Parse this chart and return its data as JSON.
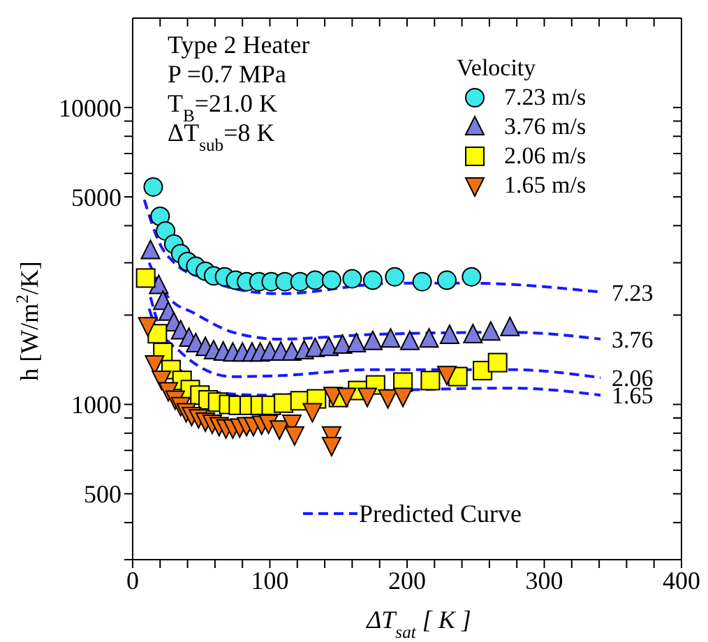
{
  "chart_data": {
    "type": "scatter",
    "xlabel": "ΔT$_{sat}$ [ K ]",
    "ylabel": "h   [W/m$^{2}$/K]",
    "legend_title": "Velocity",
    "legend": "top right",
    "log": "y",
    "xlim": [
      0,
      400
    ],
    "xticks": [
      0,
      {
        "value": 20,
        "label": null
      },
      {
        "value": 40,
        "label": null
      },
      {
        "value": 60,
        "label": null
      },
      {
        "value": 80,
        "label": null
      },
      100,
      {
        "value": 120,
        "label": null
      },
      {
        "value": 140,
        "label": null
      },
      {
        "value": 160,
        "label": null
      },
      {
        "value": 180,
        "label": null
      },
      200,
      {
        "value": 220,
        "label": null
      },
      {
        "value": 240,
        "label": null
      },
      {
        "value": 260,
        "label": null
      },
      {
        "value": 280,
        "label": null
      },
      300,
      {
        "value": 320,
        "label": null
      },
      {
        "value": 340,
        "label": null
      },
      {
        "value": 360,
        "label": null
      },
      {
        "value": 380,
        "label": null
      },
      400
    ],
    "ylim": [
      300,
      20000
    ],
    "yticks": [
      {
        "value": 300,
        "label": null
      },
      {
        "value": 400,
        "label": null
      },
      500,
      {
        "value": 600,
        "label": null
      },
      {
        "value": 700,
        "label": null
      },
      {
        "value": 800,
        "label": null
      },
      {
        "value": 900,
        "label": null
      },
      1000,
      {
        "value": 2000,
        "label": null
      },
      {
        "value": 3000,
        "label": null
      },
      {
        "value": 4000,
        "label": null
      },
      5000,
      {
        "value": 6000,
        "label": null
      },
      {
        "value": 7000,
        "label": null
      },
      {
        "value": 8000,
        "label": null
      },
      {
        "value": 9000,
        "label": null
      },
      10000
    ],
    "annotations": [
      "Type 2 Heater",
      "P =0.7  MPa",
      "T$_{B}$=21.0  K",
      "ΔT$_{sub}$=8  K",
      "Predicted Curve",
      "7.23",
      "3.76",
      "2.06",
      "1.65"
    ],
    "series": [
      {
        "name": "7.23 m/s",
        "marker": "circle",
        "color": "#40e8e8",
        "x": [
          15,
          20,
          24,
          30,
          35,
          40,
          46,
          53,
          59,
          67,
          75,
          83,
          92,
          101,
          111,
          122,
          133,
          145,
          160,
          175,
          191,
          211,
          229,
          247
        ],
        "values": [
          5400,
          4300,
          3840,
          3470,
          3220,
          3030,
          2920,
          2810,
          2710,
          2690,
          2620,
          2590,
          2590,
          2590,
          2590,
          2590,
          2620,
          2620,
          2650,
          2620,
          2690,
          2590,
          2620,
          2690
        ]
      },
      {
        "name": "3.76 m/s",
        "marker": "triangle",
        "color": "#7b7be0",
        "x": [
          13,
          19,
          22,
          26,
          30,
          35,
          41,
          46,
          53,
          59,
          66,
          73,
          80,
          87,
          93,
          100,
          108,
          116,
          125,
          133,
          143,
          153,
          163,
          175,
          188,
          202,
          216,
          231,
          248,
          261,
          275
        ],
        "values": [
          3290,
          2510,
          2220,
          2040,
          1880,
          1765,
          1667,
          1597,
          1553,
          1513,
          1497,
          1487,
          1487,
          1487,
          1487,
          1497,
          1497,
          1497,
          1513,
          1540,
          1553,
          1580,
          1597,
          1626,
          1656,
          1626,
          1656,
          1705,
          1714,
          1750,
          1812
        ]
      },
      {
        "name": "2.06 m/s",
        "marker": "square",
        "color": "#ffff00",
        "x": [
          9.5,
          18,
          22,
          28,
          36,
          42,
          49,
          55,
          62,
          70,
          77,
          85,
          93,
          101,
          110,
          122,
          134,
          150,
          164,
          177,
          197,
          217,
          237,
          255,
          266
        ],
        "values": [
          2665,
          1730,
          1497,
          1310,
          1205,
          1122,
          1075,
          1036,
          1018,
          1000,
          993,
          993,
          993,
          993,
          1010,
          1029,
          1044,
          1055,
          1114,
          1163,
          1189,
          1203,
          1241,
          1300,
          1383
        ]
      },
      {
        "name": "1.65 m/s",
        "marker": "triangle-down",
        "color": "#f07010",
        "x": [
          11,
          16,
          21,
          26,
          31,
          35,
          39,
          43,
          48,
          53,
          58,
          63,
          68,
          73,
          78,
          83,
          88,
          94,
          99,
          107,
          116,
          118,
          131,
          145,
          145,
          146,
          156,
          171,
          186,
          197,
          229
        ],
        "values": [
          1845,
          1373,
          1219,
          1114,
          1044,
          993,
          947,
          920,
          904,
          881,
          866,
          850,
          835,
          835,
          841,
          850,
          850,
          860,
          866,
          829,
          866,
          791,
          947,
          791,
          729,
          1075,
          1067,
          1067,
          1055,
          1067,
          1264
        ]
      },
      {
        "type": "line",
        "line_style": "dashed",
        "color": "#1a1aff",
        "x": [
          8.5,
          19,
          32,
          53,
          73,
          107,
          191,
          246,
          341
        ],
        "values": [
          4890,
          3540,
          2950,
          2650,
          2460,
          2360,
          2560,
          2560,
          2390
        ]
      },
      {
        "type": "line",
        "line_style": "dashed",
        "color": "#1a1aff",
        "x": [
          12,
          20,
          30,
          42,
          73,
          107,
          175,
          276,
          341
        ],
        "values": [
          3000,
          2500,
          2200,
          2060,
          1750,
          1660,
          1720,
          1750,
          1660
        ]
      },
      {
        "type": "line",
        "line_style": "dashed",
        "color": "#1a1aff",
        "x": [
          13,
          20,
          35,
          73,
          107,
          175,
          275,
          341
        ],
        "values": [
          2300,
          1800,
          1500,
          1240,
          1250,
          1310,
          1310,
          1230
        ]
      },
      {
        "type": "line",
        "line_style": "dashed",
        "color": "#1a1aff",
        "x": [
          12,
          20,
          35,
          60,
          94,
          175,
          276,
          341
        ],
        "values": [
          2100,
          1650,
          1300,
          1100,
          1075,
          1110,
          1135,
          1075
        ]
      }
    ]
  }
}
